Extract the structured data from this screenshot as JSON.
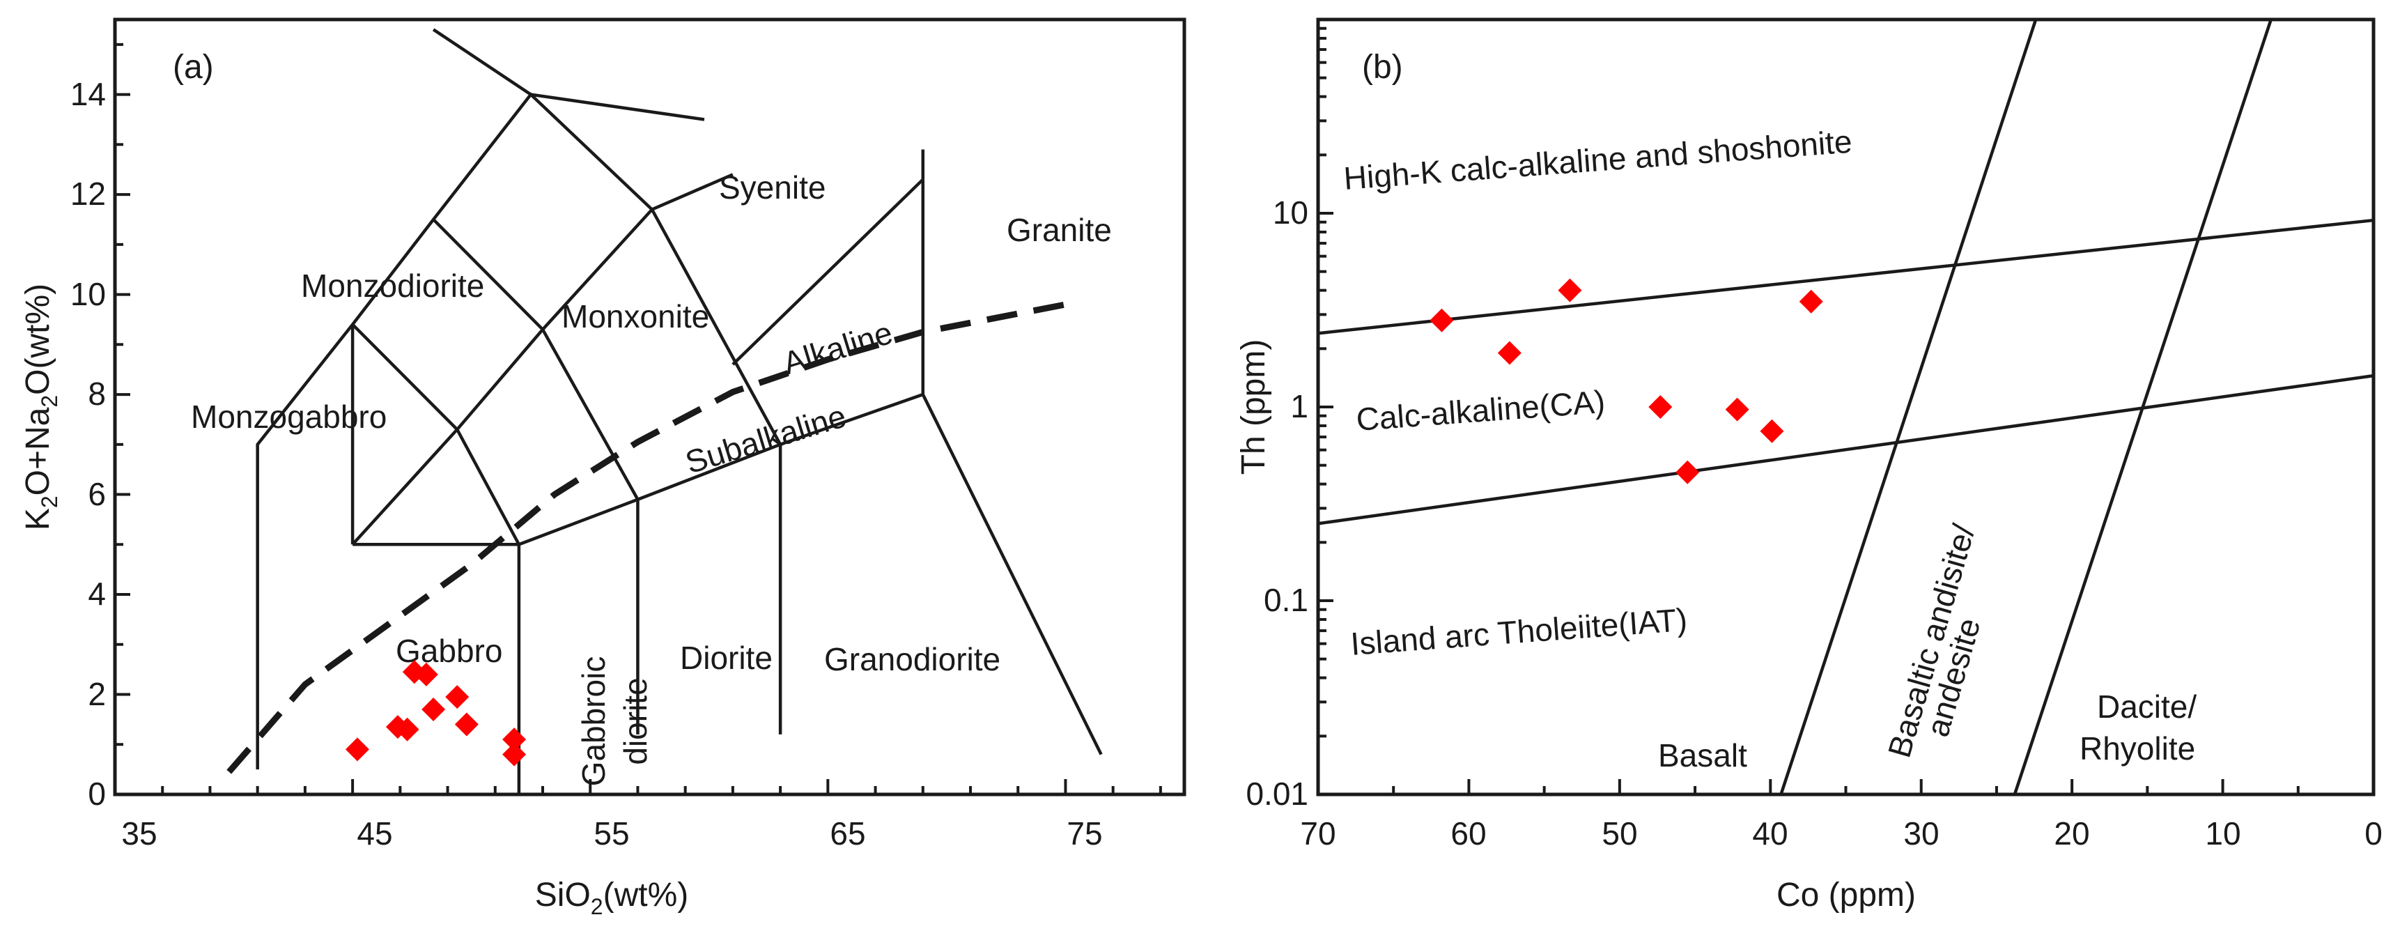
{
  "chart_data": [
    {
      "type": "scatter",
      "panel_label": "(a)",
      "xlabel_main": "SiO",
      "xlabel_sub": "2",
      "xlabel_tail": "(wt%)",
      "ylabel_a": "K",
      "ylabel_sub1": "2",
      "ylabel_b": "O+Na",
      "ylabel_sub2": "2",
      "ylabel_c": "O(wt%)",
      "xlim": [
        35,
        80
      ],
      "ylim": [
        0,
        15.5
      ],
      "xticks": [
        "35",
        "45",
        "55",
        "65",
        "75"
      ],
      "yticks": [
        "0",
        "2",
        "4",
        "6",
        "8",
        "10",
        "12",
        "14"
      ],
      "fields": [
        "Monzodiorite",
        "Monxonite",
        "Syenite",
        "Granite",
        "Alkaline",
        "Subalkaline",
        "Monzogabbro",
        "Gabbro",
        "Gabbroic",
        "diorite",
        "Diorite",
        "Granodiorite"
      ],
      "marker_color": "#ff0000",
      "points": [
        {
          "x": 45.2,
          "y": 0.9
        },
        {
          "x": 46.9,
          "y": 1.35
        },
        {
          "x": 47.3,
          "y": 1.3
        },
        {
          "x": 47.6,
          "y": 2.45
        },
        {
          "x": 48.1,
          "y": 2.4
        },
        {
          "x": 48.4,
          "y": 1.7
        },
        {
          "x": 49.4,
          "y": 1.95
        },
        {
          "x": 49.8,
          "y": 1.4
        },
        {
          "x": 51.8,
          "y": 1.1
        },
        {
          "x": 51.8,
          "y": 0.8
        }
      ]
    },
    {
      "type": "scatter",
      "panel_label": "(b)",
      "xlabel": "Co (ppm)",
      "ylabel": "Th (ppm)",
      "xlim": [
        70,
        0
      ],
      "ylim_log": [
        0.01,
        100
      ],
      "xticks": [
        "70",
        "60",
        "50",
        "40",
        "30",
        "20",
        "10",
        "0"
      ],
      "yticks": [
        "0.01",
        "0.1",
        "1",
        "10"
      ],
      "fields": [
        "High-K calc-alkaline and shoshonite",
        "Calc-alkaline(CA)",
        "Island arc Tholeiite(IAT)",
        "Basalt",
        "Basaltic andisite/",
        "andesite",
        "Dacite/",
        "Rhyolite"
      ],
      "marker_color": "#ff0000",
      "points": [
        {
          "x": 61.8,
          "y": 2.8
        },
        {
          "x": 57.3,
          "y": 1.9
        },
        {
          "x": 53.3,
          "y": 4.0
        },
        {
          "x": 47.3,
          "y": 1.0
        },
        {
          "x": 45.5,
          "y": 0.46
        },
        {
          "x": 42.2,
          "y": 0.97
        },
        {
          "x": 39.9,
          "y": 0.75
        },
        {
          "x": 37.3,
          "y": 3.5
        }
      ]
    }
  ]
}
